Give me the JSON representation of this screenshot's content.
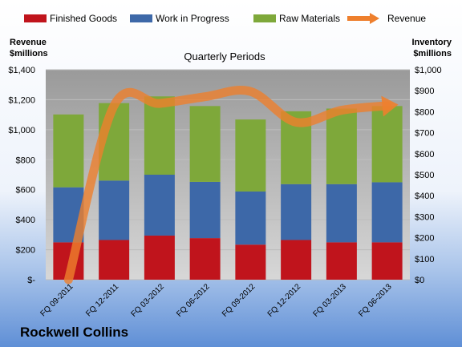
{
  "chart_data": {
    "type": "bar",
    "stacked": true,
    "subtitle": "Quarterly Periods",
    "company": "Rockwell Collins",
    "left_axis": {
      "title_line1": "Revenue",
      "title_line2": "$millions",
      "range": [
        0,
        1400
      ],
      "ticks": [
        "$-",
        "$200",
        "$400",
        "$600",
        "$800",
        "$1,000",
        "$1,200",
        "$1,400"
      ]
    },
    "right_axis": {
      "title_line1": "Inventory",
      "title_line2": "$millions",
      "range": [
        0,
        1000
      ],
      "ticks": [
        "$0",
        "$100",
        "$200",
        "$300",
        "$400",
        "$500",
        "$600",
        "$700",
        "$800",
        "$900",
        "$1,000"
      ]
    },
    "categories": [
      "FQ 09-2011",
      "FQ 12-2011",
      "FQ 03-2012",
      "FQ 06-2012",
      "FQ 09-2012",
      "FQ 12-2012",
      "FQ 03-2013",
      "FQ 06-2013"
    ],
    "series": [
      {
        "name": "Finished Goods",
        "axis": "right",
        "color": "#c0141c",
        "values": [
          178,
          189,
          210,
          198,
          167,
          189,
          178,
          178
        ]
      },
      {
        "name": "Work in Progress",
        "axis": "right",
        "color": "#3d68a8",
        "values": [
          262,
          283,
          290,
          268,
          253,
          266,
          277,
          286
        ]
      },
      {
        "name": "Raw Materials",
        "axis": "right",
        "color": "#7ea83a",
        "values": [
          347,
          369,
          373,
          361,
          343,
          347,
          360,
          363
        ]
      },
      {
        "name": "Revenue",
        "axis": "left",
        "type": "line",
        "color": "#ee7f2d",
        "values": [
          0,
          1160,
          1175,
          1220,
          1255,
          1050,
          1130,
          1160
        ]
      }
    ],
    "grid": true,
    "legend_position": "top"
  }
}
